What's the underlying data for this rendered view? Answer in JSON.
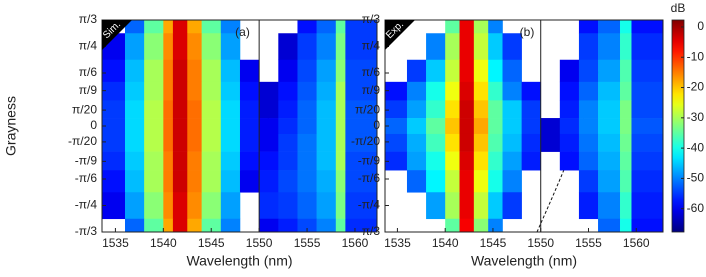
{
  "chart_data": [
    {
      "type": "heatmap",
      "label": "Sim.",
      "annotation": "(a)",
      "xlabel": "Wavelength (nm)",
      "ylabel": "Grayness",
      "xlim": [
        1533.6,
        1562.3
      ],
      "xticks": [
        1535,
        1540,
        1545,
        1550,
        1555,
        1560
      ],
      "divider": 1550,
      "ylim": [
        -1.0472,
        1.0472
      ],
      "yticks": [
        {
          "value": 1.0472,
          "label": "π/3"
        },
        {
          "value": 0.7854,
          "label": "π/4"
        },
        {
          "value": 0.5236,
          "label": "π/6"
        },
        {
          "value": 0.3491,
          "label": "π/9"
        },
        {
          "value": 0.1571,
          "label": "π/20"
        },
        0,
        {
          "value": -0.1571,
          "label": "-π/20"
        },
        {
          "value": -0.3491,
          "label": "-π/9"
        },
        {
          "value": -0.5236,
          "label": "-π/6"
        },
        {
          "value": -0.7854,
          "label": "-π/4"
        },
        {
          "value": -1.0472,
          "label": "-π/3"
        }
      ],
      "x_bins": [
        1533.6,
        1536,
        1538,
        1540,
        1541,
        1542.5,
        1544,
        1546,
        1548,
        1550,
        1552,
        1554,
        1556,
        1558,
        1559,
        1562.3
      ],
      "y": [
        1.0472,
        0.7854,
        0.5236,
        0.3491,
        0.1571,
        0,
        -0.1571,
        -0.3491,
        -0.5236,
        -0.7854,
        -1.0472
      ],
      "z": [
        [
          null,
          -52,
          -35,
          -18,
          -4,
          -18,
          -35,
          -50,
          null,
          null,
          null,
          -58,
          -52,
          -35,
          -55
        ],
        [
          -60,
          -48,
          -32,
          -16,
          -4,
          -16,
          -32,
          -48,
          null,
          null,
          -62,
          -55,
          -50,
          -33,
          -55
        ],
        [
          -58,
          -46,
          -30,
          -15,
          -3,
          -15,
          -30,
          -46,
          -60,
          null,
          -60,
          -54,
          -48,
          -32,
          -54
        ],
        [
          -56,
          -45,
          -30,
          -15,
          -3,
          -15,
          -30,
          -45,
          -58,
          -62,
          -58,
          -53,
          -47,
          -30,
          -54
        ],
        [
          -55,
          -44,
          -29,
          -14,
          -3,
          -14,
          -29,
          -44,
          -57,
          -62,
          -57,
          -52,
          -46,
          -30,
          -53
        ],
        [
          -55,
          -44,
          -29,
          -14,
          -3,
          -14,
          -29,
          -44,
          -57,
          -60,
          -56,
          -52,
          -46,
          -30,
          -53
        ],
        [
          -55,
          -44,
          -29,
          -14,
          -3,
          -14,
          -29,
          -44,
          -57,
          -60,
          -55,
          -51,
          -46,
          -30,
          -53
        ],
        [
          -56,
          -45,
          -30,
          -15,
          -3,
          -15,
          -30,
          -45,
          -58,
          -58,
          -55,
          -51,
          -46,
          -30,
          -54
        ],
        [
          -58,
          -46,
          -30,
          -15,
          -3,
          -15,
          -30,
          -46,
          -60,
          -57,
          -54,
          -51,
          -47,
          -32,
          -54
        ],
        [
          -60,
          -48,
          -32,
          -16,
          -4,
          -16,
          -32,
          -48,
          null,
          -56,
          -55,
          -52,
          -48,
          -33,
          -55
        ],
        [
          null,
          -52,
          -35,
          -18,
          -4,
          -18,
          -35,
          -50,
          null,
          -60,
          -57,
          -54,
          -50,
          -35,
          -56
        ]
      ]
    },
    {
      "type": "heatmap",
      "label": "Exp.",
      "annotation": "(b)",
      "xlabel": "Wavelength (nm)",
      "xlim": [
        1533.7,
        1562.8
      ],
      "xticks": [
        1535,
        1540,
        1545,
        1550,
        1555,
        1560
      ],
      "divider": 1550,
      "ylim": [
        -1.0472,
        1.0472
      ],
      "yticks": [
        {
          "value": 1.0472,
          "label": "π/3"
        },
        {
          "value": 0.7854,
          "label": "π/4"
        },
        {
          "value": 0.5236,
          "label": "π/6"
        },
        {
          "value": 0.3491,
          "label": "π/9"
        },
        {
          "value": 0.1571,
          "label": "π/20"
        },
        0,
        {
          "value": -0.1571,
          "label": "-π/20"
        },
        {
          "value": -0.3491,
          "label": "-π/9"
        },
        {
          "value": -0.5236,
          "label": "-π/6"
        },
        {
          "value": -0.7854,
          "label": "-π/4"
        },
        {
          "value": -1.0472,
          "label": "-π/3"
        }
      ],
      "x_bins": [
        1533.7,
        1536,
        1538,
        1540,
        1541.5,
        1543,
        1544.5,
        1546,
        1548,
        1550,
        1552,
        1554,
        1556,
        1558.3,
        1559.5,
        1562.8
      ],
      "y": [
        1.0472,
        0.7854,
        0.5236,
        0.3491,
        0.1571,
        0,
        -0.1571,
        -0.3491,
        -0.5236,
        -0.7854,
        -1.0472
      ],
      "z": [
        [
          null,
          null,
          null,
          -35,
          -5,
          -30,
          -50,
          null,
          null,
          null,
          null,
          -58,
          -52,
          -40,
          -58
        ],
        [
          null,
          null,
          -50,
          -30,
          -5,
          -28,
          -45,
          -55,
          null,
          null,
          null,
          -55,
          -50,
          -38,
          -56
        ],
        [
          null,
          -55,
          -45,
          -28,
          -5,
          -25,
          -42,
          -52,
          null,
          null,
          -60,
          -54,
          -48,
          -36,
          -55
        ],
        [
          -58,
          -50,
          -40,
          -25,
          -4,
          -22,
          -38,
          -50,
          -58,
          null,
          -58,
          -52,
          -46,
          -35,
          -54
        ],
        [
          -55,
          -48,
          -38,
          -22,
          -3,
          -20,
          -35,
          -45,
          -55,
          null,
          -57,
          -50,
          -45,
          -33,
          -54
        ],
        [
          -52,
          -45,
          -35,
          -20,
          -3,
          -18,
          -35,
          -45,
          -55,
          -62,
          -56,
          -50,
          -45,
          -33,
          -53
        ],
        [
          -54,
          -47,
          -37,
          -22,
          -3,
          -20,
          -36,
          -46,
          -56,
          -62,
          -57,
          -51,
          -46,
          -34,
          -54
        ],
        [
          -56,
          -48,
          -40,
          -25,
          -4,
          -22,
          -38,
          -48,
          -57,
          null,
          -58,
          -52,
          -47,
          -35,
          -55
        ],
        [
          null,
          -52,
          -42,
          -28,
          -5,
          -25,
          -40,
          -50,
          null,
          null,
          null,
          -55,
          -48,
          -36,
          -56
        ],
        [
          null,
          null,
          -48,
          -30,
          -5,
          -28,
          -45,
          -55,
          null,
          null,
          null,
          -57,
          -50,
          -38,
          -57
        ],
        [
          null,
          null,
          null,
          -35,
          -6,
          -32,
          -50,
          null,
          null,
          null,
          null,
          null,
          -52,
          -40,
          -58
        ]
      ]
    }
  ],
  "colorbar": {
    "label": "dB",
    "colormap": "jet",
    "clim": [
      -67.7,
      2.3
    ],
    "ticks": [
      0,
      -10,
      -20,
      -30,
      -40,
      -50,
      -60
    ]
  }
}
